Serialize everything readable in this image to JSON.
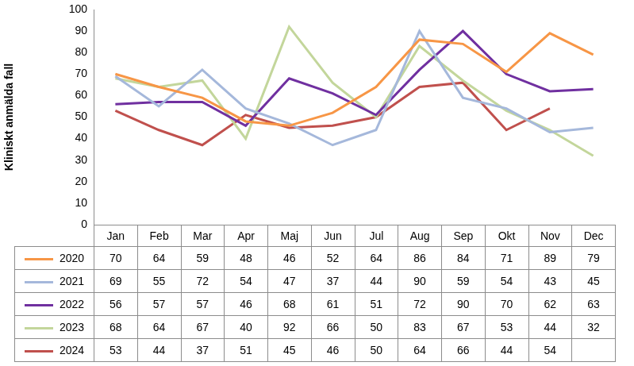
{
  "chart_data": {
    "type": "line",
    "ylabel": "Kliniskt anmälda fall",
    "categories": [
      "Jan",
      "Feb",
      "Mar",
      "Apr",
      "Maj",
      "Jun",
      "Jul",
      "Aug",
      "Sep",
      "Okt",
      "Nov",
      "Dec"
    ],
    "series": [
      {
        "name": "2020",
        "color": "#f79646",
        "values": [
          70,
          64,
          59,
          48,
          46,
          52,
          64,
          86,
          84,
          71,
          89,
          79
        ]
      },
      {
        "name": "2021",
        "color": "#a5b8db",
        "values": [
          69,
          55,
          72,
          54,
          47,
          37,
          44,
          90,
          59,
          54,
          43,
          45
        ]
      },
      {
        "name": "2022",
        "color": "#7030a0",
        "values": [
          56,
          57,
          57,
          46,
          68,
          61,
          51,
          72,
          90,
          70,
          62,
          63
        ]
      },
      {
        "name": "2023",
        "color": "#c3d69b",
        "values": [
          68,
          64,
          67,
          40,
          92,
          66,
          50,
          83,
          67,
          53,
          44,
          32
        ]
      },
      {
        "name": "2024",
        "color": "#c0504d",
        "values": [
          53,
          44,
          37,
          51,
          45,
          46,
          50,
          64,
          66,
          44,
          54,
          null
        ]
      }
    ],
    "ylim": [
      0,
      100
    ],
    "yticks": [
      0,
      10,
      20,
      30,
      40,
      50,
      60,
      70,
      80,
      90,
      100
    ],
    "grid": false,
    "tick_labels": "y",
    "marker": "none"
  }
}
